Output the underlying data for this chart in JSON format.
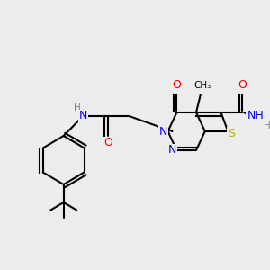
{
  "background_color": "#ececec",
  "atom_colors": {
    "C": "#000000",
    "N": "#0000ff",
    "O": "#ff0000",
    "S": "#b8b800",
    "H": "#808080"
  },
  "bond_color": "#000000",
  "bond_width": 1.5,
  "fig_width": 3.0,
  "fig_height": 3.0,
  "dpi": 100
}
